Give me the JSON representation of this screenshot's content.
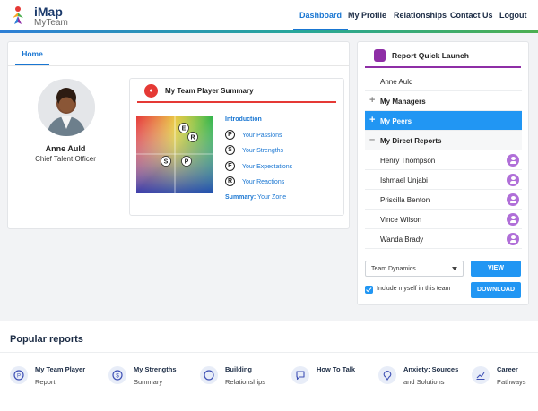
{
  "brand": {
    "line1": "iMap",
    "line2": "MyTeam"
  },
  "nav": {
    "links": [
      {
        "label": "Dashboard",
        "active": true
      },
      {
        "label": "My Profile"
      },
      {
        "label": "Relationships"
      },
      {
        "label": "Contact Us"
      },
      {
        "label": "Logout"
      }
    ]
  },
  "home": {
    "tab": "Home",
    "profile": {
      "name": "Anne Auld",
      "title": "Chief Talent Officer"
    },
    "summary": {
      "title": "My Team Player Summary",
      "intro": "Introduction",
      "traits": [
        {
          "letter": "P",
          "label": "Your Passions"
        },
        {
          "letter": "S",
          "label": "Your Strengths"
        },
        {
          "letter": "E",
          "label": "Your Expectations"
        },
        {
          "letter": "R",
          "label": "Your Reactions"
        }
      ],
      "zone_bold": "Summary:",
      "zone_text": " Your Zone",
      "quad_markers": [
        "E",
        "R",
        "S",
        "P"
      ]
    }
  },
  "quick_launch": {
    "title": "Report Quick Launch",
    "self": "Anne Auld",
    "managers": "My Managers",
    "peers": "My Peers",
    "direct_reports": "My Direct Reports",
    "reports": [
      "Henry Thompson",
      "Ishmael Unjabi",
      "Priscilla Benton",
      "Vince Wilson",
      "Wanda Brady"
    ],
    "select_value": "Team Dynamics",
    "view_label": "VIEW",
    "download_label": "DOWNLOAD",
    "include_label": "Include myself in this team",
    "include_checked": true
  },
  "popular": {
    "title": "Popular reports",
    "items": [
      {
        "l1": "My Team Player",
        "l2": "Report",
        "icon": "circle-p-icon"
      },
      {
        "l1": "My Strengths",
        "l2": "Summary",
        "icon": "dollar-icon"
      },
      {
        "l1": "Building",
        "l2": "Relationships",
        "icon": "ring-icon"
      },
      {
        "l1": "How To Talk",
        "l2": "",
        "icon": "chat-icon"
      },
      {
        "l1": "Anxiety: Sources",
        "l2": "and Solutions",
        "icon": "brain-icon"
      },
      {
        "l1": "Career",
        "l2": "Pathways",
        "icon": "chart-icon"
      }
    ]
  },
  "colors": {
    "primary": "#1976d2",
    "accent_blue": "#2196f3",
    "purple": "#8e2ea6",
    "red": "#e53935"
  }
}
